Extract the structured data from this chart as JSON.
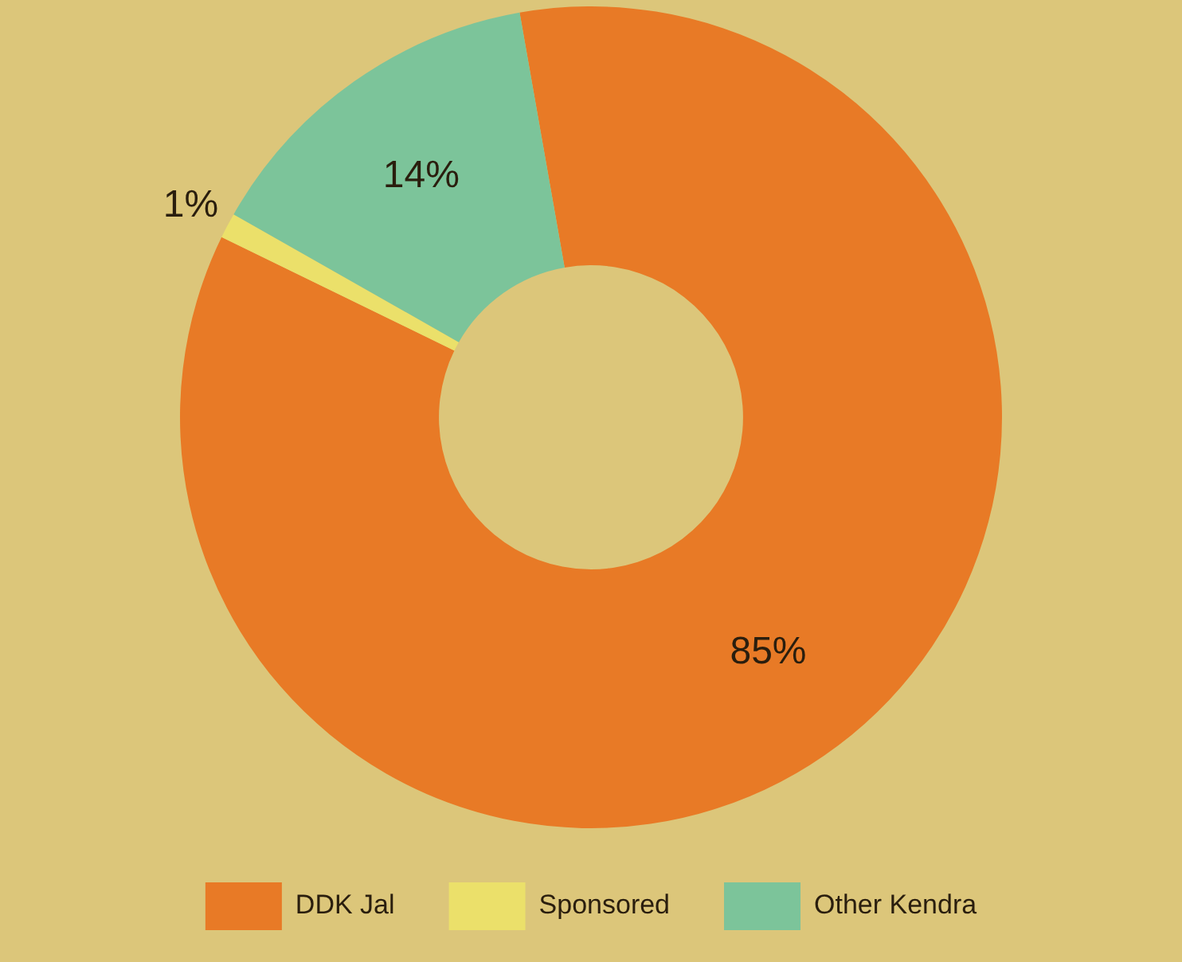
{
  "chart_data": {
    "type": "donut",
    "categories": [
      "DDK Jal",
      "Sponsored",
      "Other Kendra"
    ],
    "values": [
      85,
      1,
      14
    ],
    "value_labels": [
      "85%",
      "1%",
      "14%"
    ],
    "colors": [
      "#e87a26",
      "#ebe06a",
      "#7cc49a"
    ],
    "legend": "bottom"
  }
}
